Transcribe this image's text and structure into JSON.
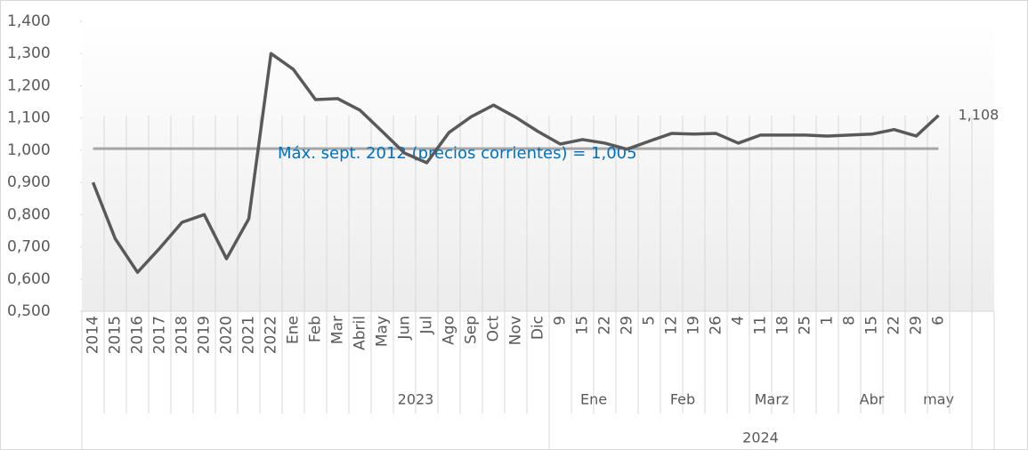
{
  "chart_data": {
    "type": "line",
    "categories": [
      "2014",
      "2015",
      "2016",
      "2017",
      "2018",
      "2019",
      "2020",
      "2021",
      "2022",
      "Ene",
      "Feb",
      "Mar",
      "Abril",
      "May",
      "Jun",
      "Jul",
      "Ago",
      "Sep",
      "Oct",
      "Nov",
      "Dic",
      "9",
      "15",
      "22",
      "29",
      "5",
      "12",
      "19",
      "26",
      "4",
      "11",
      "18",
      "25",
      "1",
      "8",
      "15",
      "22",
      "29",
      "6",
      null,
      null
    ],
    "series": [
      {
        "name": null,
        "color": "#595959",
        "values": [
          0.9,
          0.725,
          0.621,
          0.696,
          0.776,
          0.8,
          0.663,
          0.787,
          1.3,
          1.251,
          1.157,
          1.16,
          1.124,
          1.058,
          0.991,
          0.961,
          1.055,
          1.104,
          1.14,
          1.102,
          1.058,
          1.019,
          1.033,
          1.022,
          1.003,
          1.028,
          1.052,
          1.05,
          1.052,
          1.022,
          1.047,
          1.047,
          1.047,
          1.044,
          1.047,
          1.05,
          1.064,
          1.044,
          1.108,
          null,
          null
        ],
        "value_labels": [
          null,
          null,
          null,
          null,
          null,
          null,
          null,
          null,
          null,
          null,
          null,
          null,
          null,
          null,
          null,
          null,
          null,
          null,
          null,
          null,
          null,
          null,
          null,
          null,
          null,
          null,
          null,
          null,
          null,
          null,
          null,
          null,
          null,
          null,
          null,
          null,
          null,
          null,
          "1,108",
          null,
          null
        ]
      }
    ],
    "reference_line": {
      "value": 1.005,
      "label": "Máx. sept. 2012 (precios corrientes) = 1,005",
      "color": "#a6a6a6",
      "label_color": "#0070c0"
    },
    "groups": [
      {
        "label": "2023",
        "start": 9,
        "end": 20
      },
      {
        "label": "Ene",
        "start": 21,
        "end": 24
      },
      {
        "label": "Feb",
        "start": 25,
        "end": 28
      },
      {
        "label": "Marz",
        "start": 29,
        "end": 32
      },
      {
        "label": "Abr",
        "start": 33,
        "end": 37
      },
      {
        "label": "may",
        "start": 38,
        "end": 38
      }
    ],
    "outer_groups": [
      {
        "label": "2024",
        "start": 21,
        "end": 39
      }
    ],
    "ylim": [
      0.5,
      1.4
    ],
    "yticks": [
      {
        "value": 0.5,
        "label": "0,500"
      },
      {
        "value": 0.6,
        "label": "0,600"
      },
      {
        "value": 0.7,
        "label": "0,700"
      },
      {
        "value": 0.8,
        "label": "0,800"
      },
      {
        "value": 0.9,
        "label": "0,900"
      },
      {
        "value": 1.0,
        "label": "1,000"
      },
      {
        "value": 1.1,
        "label": "1,100"
      },
      {
        "value": 1.2,
        "label": "1,200"
      },
      {
        "value": 1.3,
        "label": "1,300"
      },
      {
        "value": 1.4,
        "label": "1,400"
      }
    ],
    "grid": true
  }
}
